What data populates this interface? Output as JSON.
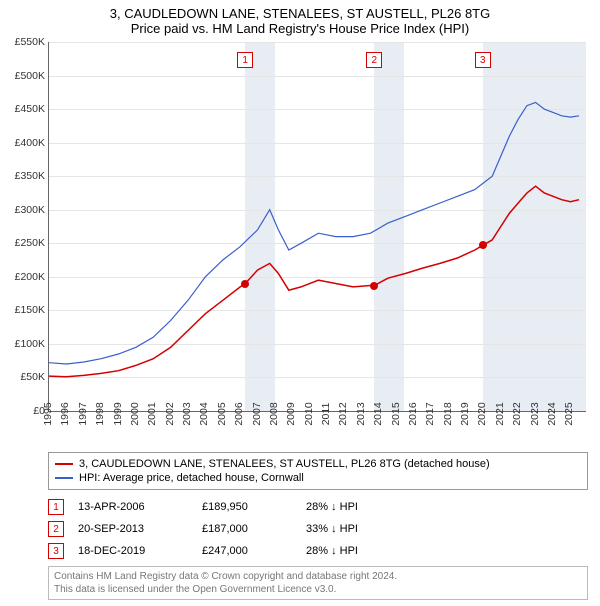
{
  "title_line1": "3, CAUDLEDOWN LANE, STENALEES, ST AUSTELL, PL26 8TG",
  "title_line2": "Price paid vs. HM Land Registry's House Price Index (HPI)",
  "chart": {
    "type": "line",
    "x_min": 1995,
    "x_max": 2025.9,
    "y_min": 0,
    "y_max": 550000,
    "y_step": 50000,
    "y_labels": [
      "£0",
      "£50K",
      "£100K",
      "£150K",
      "£200K",
      "£250K",
      "£300K",
      "£350K",
      "£400K",
      "£450K",
      "£500K",
      "£550K"
    ],
    "x_ticks": [
      1995,
      1996,
      1997,
      1998,
      1999,
      2000,
      2001,
      2002,
      2003,
      2004,
      2005,
      2006,
      2007,
      2008,
      2009,
      2010,
      2011,
      2012,
      2013,
      2014,
      2015,
      2016,
      2017,
      2018,
      2019,
      2020,
      2021,
      2022,
      2023,
      2024,
      2025
    ],
    "background_color": "#ffffff",
    "grid_color": "#e5e5e5",
    "shade_color": "#e8ecf3",
    "shade_ranges": [
      [
        2006.3,
        2008.0
      ],
      [
        2013.7,
        2015.4
      ],
      [
        2020.0,
        2025.9
      ]
    ],
    "series": [
      {
        "key": "hpi",
        "label": "HPI: Average price, detached house, Cornwall",
        "color": "#3a5fcd",
        "width": 1.2,
        "data": [
          [
            1995.0,
            72000
          ],
          [
            1996.0,
            70000
          ],
          [
            1997.0,
            73000
          ],
          [
            1998.0,
            78000
          ],
          [
            1999.0,
            85000
          ],
          [
            2000.0,
            95000
          ],
          [
            2001.0,
            110000
          ],
          [
            2002.0,
            135000
          ],
          [
            2003.0,
            165000
          ],
          [
            2004.0,
            200000
          ],
          [
            2005.0,
            225000
          ],
          [
            2006.0,
            245000
          ],
          [
            2007.0,
            270000
          ],
          [
            2007.7,
            300000
          ],
          [
            2008.2,
            270000
          ],
          [
            2008.8,
            240000
          ],
          [
            2009.5,
            250000
          ],
          [
            2010.5,
            265000
          ],
          [
            2011.5,
            260000
          ],
          [
            2012.5,
            260000
          ],
          [
            2013.5,
            265000
          ],
          [
            2014.5,
            280000
          ],
          [
            2015.5,
            290000
          ],
          [
            2016.5,
            300000
          ],
          [
            2017.5,
            310000
          ],
          [
            2018.5,
            320000
          ],
          [
            2019.5,
            330000
          ],
          [
            2020.5,
            350000
          ],
          [
            2021.0,
            380000
          ],
          [
            2021.5,
            410000
          ],
          [
            2022.0,
            435000
          ],
          [
            2022.5,
            455000
          ],
          [
            2023.0,
            460000
          ],
          [
            2023.5,
            450000
          ],
          [
            2024.0,
            445000
          ],
          [
            2024.5,
            440000
          ],
          [
            2025.0,
            438000
          ],
          [
            2025.5,
            440000
          ]
        ]
      },
      {
        "key": "property",
        "label": "3, CAUDLEDOWN LANE, STENALEES, ST AUSTELL, PL26 8TG (detached house)",
        "color": "#d40000",
        "width": 1.5,
        "data": [
          [
            1995.0,
            52000
          ],
          [
            1996.0,
            51000
          ],
          [
            1997.0,
            53000
          ],
          [
            1998.0,
            56000
          ],
          [
            1999.0,
            60000
          ],
          [
            2000.0,
            68000
          ],
          [
            2001.0,
            78000
          ],
          [
            2002.0,
            95000
          ],
          [
            2003.0,
            120000
          ],
          [
            2004.0,
            145000
          ],
          [
            2005.0,
            165000
          ],
          [
            2006.0,
            185000
          ],
          [
            2006.29,
            189950
          ],
          [
            2007.0,
            210000
          ],
          [
            2007.7,
            220000
          ],
          [
            2008.2,
            205000
          ],
          [
            2008.8,
            180000
          ],
          [
            2009.5,
            185000
          ],
          [
            2010.5,
            195000
          ],
          [
            2011.5,
            190000
          ],
          [
            2012.5,
            185000
          ],
          [
            2013.5,
            187000
          ],
          [
            2013.72,
            187000
          ],
          [
            2014.5,
            198000
          ],
          [
            2015.5,
            205000
          ],
          [
            2016.5,
            213000
          ],
          [
            2017.5,
            220000
          ],
          [
            2018.5,
            228000
          ],
          [
            2019.5,
            240000
          ],
          [
            2019.96,
            247000
          ],
          [
            2020.5,
            255000
          ],
          [
            2021.0,
            275000
          ],
          [
            2021.5,
            295000
          ],
          [
            2022.0,
            310000
          ],
          [
            2022.5,
            325000
          ],
          [
            2023.0,
            335000
          ],
          [
            2023.5,
            325000
          ],
          [
            2024.0,
            320000
          ],
          [
            2024.5,
            315000
          ],
          [
            2025.0,
            312000
          ],
          [
            2025.5,
            315000
          ]
        ]
      }
    ],
    "markers": {
      "color": "#d40000",
      "top_offset": 10,
      "items": [
        {
          "n": "1",
          "x": 2006.29
        },
        {
          "n": "2",
          "x": 2013.72
        },
        {
          "n": "3",
          "x": 2019.96
        }
      ]
    },
    "sale_dots": {
      "color": "#d40000",
      "points": [
        {
          "x": 2006.29,
          "y": 189950
        },
        {
          "x": 2013.72,
          "y": 187000
        },
        {
          "x": 2019.96,
          "y": 247000
        }
      ]
    }
  },
  "legend": [
    {
      "key": "property",
      "color": "#d40000"
    },
    {
      "key": "hpi",
      "color": "#3a5fcd"
    }
  ],
  "sales": [
    {
      "n": "1",
      "date": "13-APR-2006",
      "price": "£189,950",
      "delta": "28% ↓ HPI",
      "color": "#d40000"
    },
    {
      "n": "2",
      "date": "20-SEP-2013",
      "price": "£187,000",
      "delta": "33% ↓ HPI",
      "color": "#d40000"
    },
    {
      "n": "3",
      "date": "18-DEC-2019",
      "price": "£247,000",
      "delta": "28% ↓ HPI",
      "color": "#d40000"
    }
  ],
  "credits_line1": "Contains HM Land Registry data © Crown copyright and database right 2024.",
  "credits_line2": "This data is licensed under the Open Government Licence v3.0."
}
